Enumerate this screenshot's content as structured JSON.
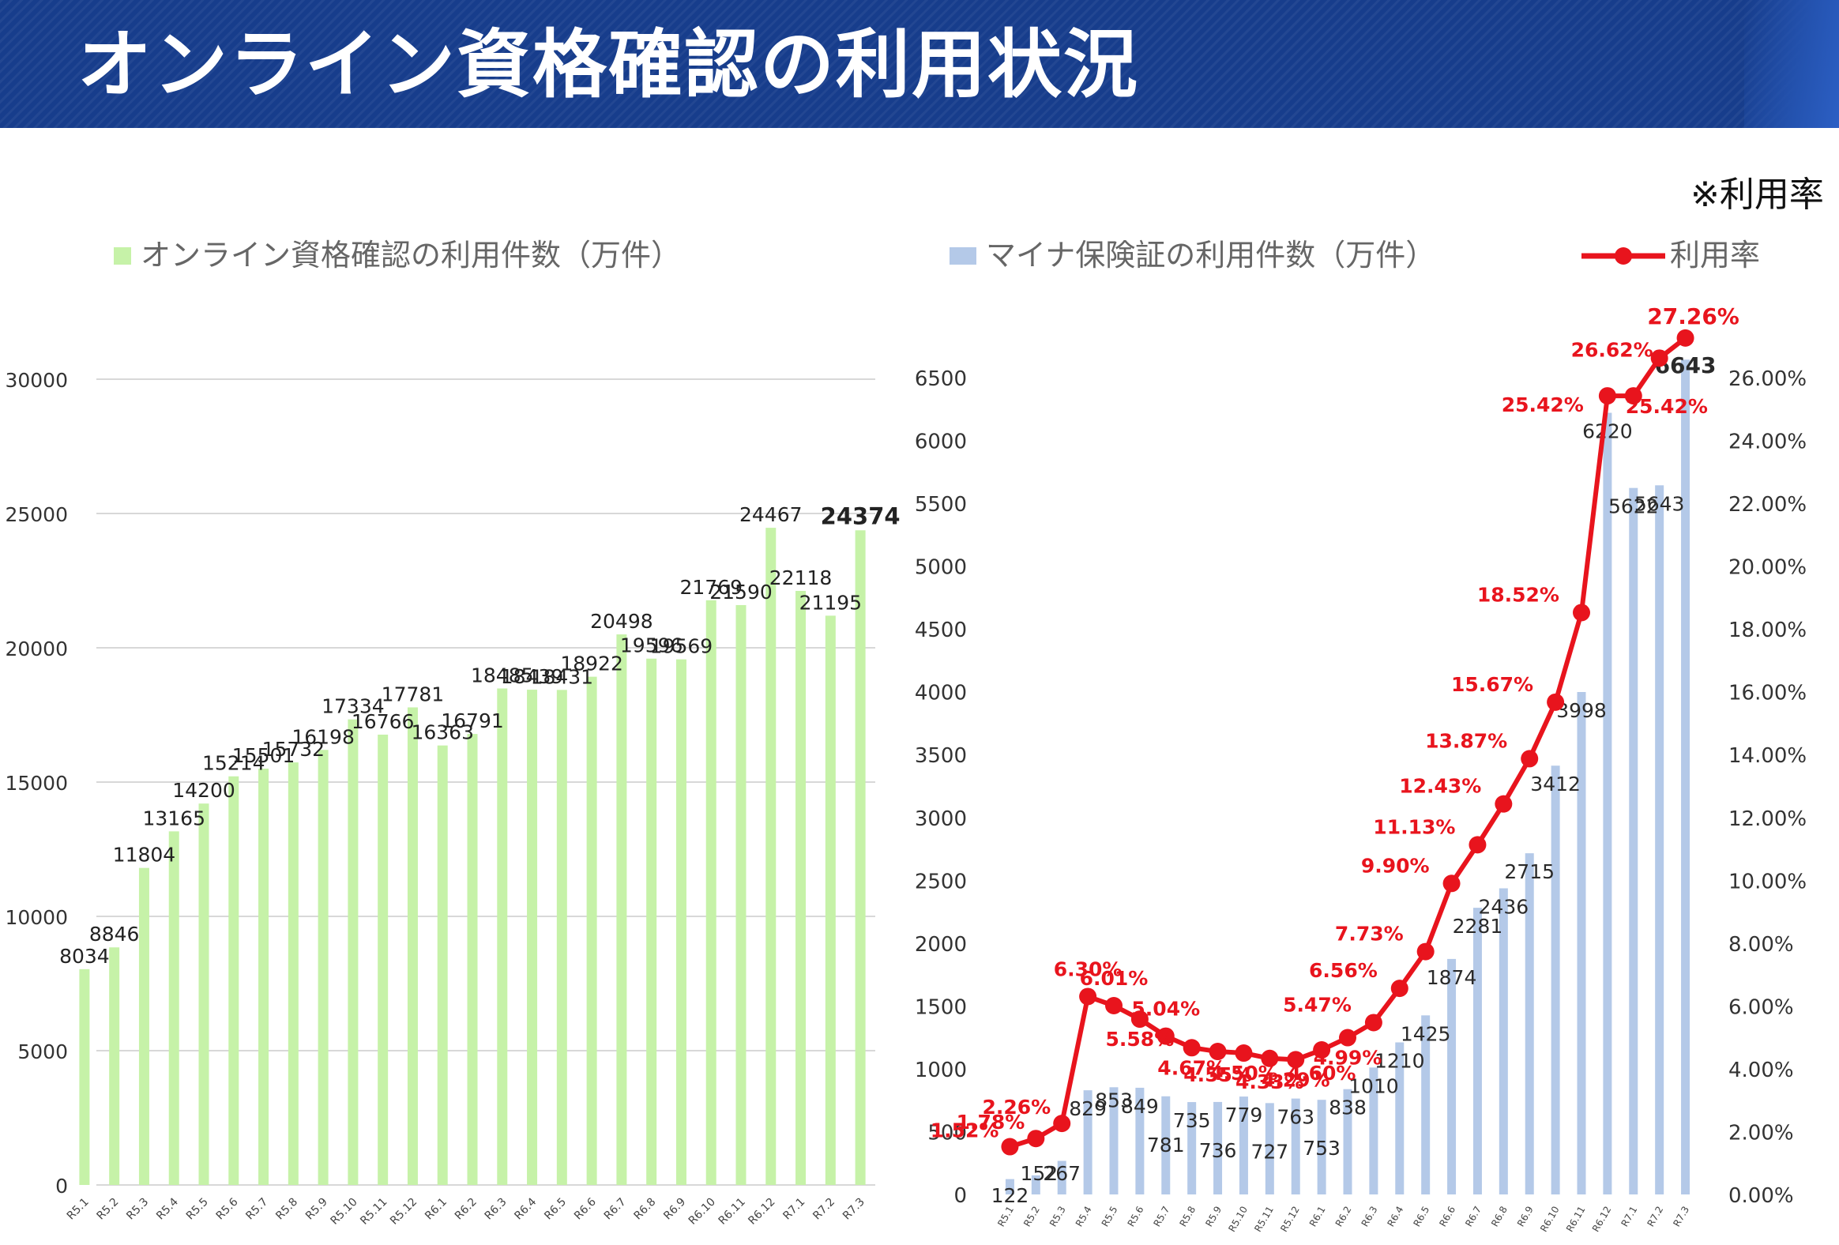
{
  "header": {
    "title": "オンライン資格確認の利用状況"
  },
  "note": "※利用率",
  "colors": {
    "header_bg": "#173d8c",
    "green_bar": "#c6f2a8",
    "blue_bar": "#b4c9e8",
    "rate_line": "#e8141d"
  },
  "chart_data": [
    {
      "type": "bar",
      "legend": "オンライン資格確認の利用件数（万件）",
      "legend_position": "top",
      "grid": true,
      "ylim": [
        0,
        30000
      ],
      "yticks": [
        "0",
        "5000",
        "10000",
        "15000",
        "20000",
        "25000",
        "30000"
      ],
      "categories": [
        "R5.1",
        "R5.2",
        "R5.3",
        "R5.4",
        "R5.5",
        "R5.6",
        "R5.7",
        "R5.8",
        "R5.9",
        "R5.10",
        "R5.11",
        "R5.12",
        "R6.1",
        "R6.2",
        "R6.3",
        "R6.4",
        "R6.5",
        "R6.6",
        "R6.7",
        "R6.8",
        "R6.9",
        "R6.10",
        "R6.11",
        "R6.12",
        "R7.1",
        "R7.2",
        "R7.3"
      ],
      "values": [
        8034,
        8846,
        11804,
        13165,
        14200,
        15214,
        15501,
        15732,
        16198,
        17334,
        16766,
        17781,
        16363,
        16791,
        18485,
        18439,
        18431,
        18922,
        20498,
        19596,
        19569,
        21769,
        21590,
        24467,
        22118,
        21195,
        24374
      ],
      "value_labels": [
        "8034",
        "8846",
        "11804",
        "13165",
        "14200",
        "15214",
        "15501",
        "15732",
        "16198",
        "17334",
        "16766",
        "17781",
        "16363",
        "16791",
        "18485",
        "18439",
        "18431",
        "18922",
        "20498",
        "19596",
        "19569",
        "21769",
        "21590",
        "24467",
        "22118",
        "21195",
        "24374"
      ]
    },
    {
      "type": "bar",
      "legend": "マイナ保険証の利用件数（万件）",
      "legend_position": "top",
      "grid": false,
      "ylim": [
        0,
        6500
      ],
      "yticks": [
        "0",
        "500",
        "1000",
        "1500",
        "2000",
        "2500",
        "3000",
        "3500",
        "4000",
        "4500",
        "5000",
        "5500",
        "6000",
        "6500"
      ],
      "categories": [
        "R5.1",
        "R5.2",
        "R5.3",
        "R5.4",
        "R5.5",
        "R5.6",
        "R5.7",
        "R5.8",
        "R5.9",
        "R5.10",
        "R5.11",
        "R5.12",
        "R6.1",
        "R6.2",
        "R6.3",
        "R6.4",
        "R6.5",
        "R6.6",
        "R6.7",
        "R6.8",
        "R6.9",
        "R6.10",
        "R6.11",
        "R6.12",
        "R7.1",
        "R7.2",
        "R7.3"
      ],
      "values": [
        122,
        152,
        267,
        829,
        853,
        849,
        781,
        735,
        736,
        779,
        727,
        763,
        753,
        838,
        1010,
        1210,
        1425,
        1874,
        2281,
        2436,
        2715,
        3412,
        3998,
        6220,
        5622,
        5643,
        6643
      ],
      "value_labels": [
        "122",
        "152",
        "267",
        "829",
        "853",
        "849",
        "781",
        "735",
        "736",
        "779",
        "727",
        "763",
        "753",
        "838",
        "1010",
        "1210",
        "1425",
        "1874",
        "2281",
        "2436",
        "2715",
        "3412",
        "3998",
        "6220",
        "5622",
        "5643",
        "6643"
      ],
      "secondary": {
        "type": "line",
        "legend": "利用率",
        "ylim": [
          0,
          26
        ],
        "yticks": [
          "0.00%",
          "2.00%",
          "4.00%",
          "6.00%",
          "8.00%",
          "10.00%",
          "12.00%",
          "14.00%",
          "16.00%",
          "18.00%",
          "20.00%",
          "22.00%",
          "24.00%",
          "26.00%"
        ],
        "values": [
          1.52,
          1.78,
          2.26,
          6.3,
          6.01,
          5.58,
          5.04,
          4.67,
          4.55,
          4.5,
          4.33,
          4.29,
          4.6,
          4.99,
          5.47,
          6.56,
          7.73,
          9.9,
          11.13,
          12.43,
          13.87,
          15.67,
          18.52,
          25.42,
          25.42,
          26.62,
          27.26
        ],
        "value_labels": [
          "1.52%",
          "1.78%",
          "2.26%",
          "6.30%",
          "6.01%",
          "5.58%",
          "5.04%",
          "4.67%",
          "4.55%",
          "4.50%",
          "4.33%",
          "4.29%",
          "4.60%",
          "4.99%",
          "5.47%",
          "6.56%",
          "7.73%",
          "9.90%",
          "11.13%",
          "12.43%",
          "13.87%",
          "15.67%",
          "18.52%",
          "25.42%",
          "25.42%",
          "26.62%",
          "27.26%"
        ]
      }
    }
  ]
}
